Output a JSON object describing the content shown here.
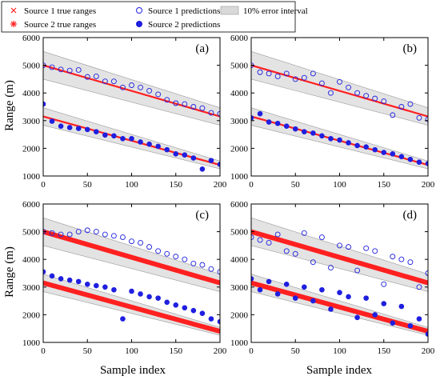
{
  "legend": {
    "s1_true": "Source 1 true ranges",
    "s1_pred": "Source 1 predictions",
    "err": "10% error interval",
    "s2_true": "Source 2 true ranges",
    "s2_pred": "Source 2 predictions"
  },
  "axes": {
    "xlabel": "Sample index",
    "ylabel": "Range (m)"
  },
  "colors": {
    "true_line": "#ff2020",
    "pred": "#1f1fe0",
    "band": "#d9d9d9",
    "band_edge": "#9a9a9a"
  },
  "chart_data": [
    {
      "type": "scatter",
      "panel_label": "(a)",
      "xlim": [
        0,
        200
      ],
      "ylim": [
        1000,
        6000
      ],
      "xticks": [
        0,
        50,
        100,
        150,
        200
      ],
      "yticks": [
        1000,
        2000,
        3000,
        4000,
        5000,
        6000
      ],
      "series": [
        {
          "name": "Source 1 true ranges",
          "line": [
            [
              0,
              5000
            ],
            [
              200,
              3150
            ]
          ]
        },
        {
          "name": "Source 2 true ranges",
          "line": [
            [
              0,
              3150
            ],
            [
              200,
              1400
            ]
          ]
        },
        {
          "name": "10% error interval"
        },
        {
          "name": "Source 1 predictions",
          "x": [
            0,
            10,
            20,
            30,
            40,
            50,
            60,
            70,
            80,
            90,
            100,
            110,
            120,
            130,
            140,
            150,
            160,
            170,
            180,
            190,
            200
          ],
          "y": [
            5000,
            4930,
            4850,
            4810,
            4830,
            4580,
            4600,
            4420,
            4420,
            4200,
            4280,
            4200,
            4080,
            3950,
            3750,
            3630,
            3600,
            3500,
            3450,
            3280,
            3250
          ]
        },
        {
          "name": "Source 2 predictions",
          "x": [
            0,
            10,
            20,
            30,
            40,
            50,
            60,
            70,
            80,
            90,
            100,
            110,
            120,
            130,
            140,
            150,
            160,
            170,
            180,
            190,
            200
          ],
          "y": [
            3600,
            2980,
            2800,
            2750,
            2720,
            2680,
            2600,
            2480,
            2450,
            2350,
            2350,
            2230,
            2150,
            2070,
            1950,
            1800,
            1760,
            1650,
            1250,
            1560,
            1420
          ]
        }
      ]
    },
    {
      "type": "scatter",
      "panel_label": "(b)",
      "xlim": [
        0,
        200
      ],
      "ylim": [
        1000,
        6000
      ],
      "xticks": [
        0,
        50,
        100,
        150,
        200
      ],
      "yticks": [
        1000,
        2000,
        3000,
        4000,
        5000,
        6000
      ],
      "series": [
        {
          "name": "Source 1 true ranges",
          "line": [
            [
              0,
              5000
            ],
            [
              200,
              3150
            ]
          ]
        },
        {
          "name": "Source 2 true ranges",
          "line": [
            [
              0,
              3150
            ],
            [
              200,
              1400
            ]
          ]
        },
        {
          "name": "10% error interval"
        },
        {
          "name": "Source 1 predictions",
          "x": [
            0,
            10,
            20,
            30,
            40,
            50,
            60,
            70,
            80,
            90,
            100,
            110,
            120,
            130,
            140,
            150,
            160,
            170,
            180,
            190,
            200
          ],
          "y": [
            5000,
            4750,
            4700,
            4600,
            4700,
            4500,
            4550,
            4700,
            4350,
            4000,
            4400,
            4200,
            4000,
            3900,
            3800,
            3700,
            3200,
            3500,
            3600,
            3100,
            3050
          ]
        },
        {
          "name": "Source 2 predictions",
          "x": [
            0,
            10,
            20,
            30,
            40,
            50,
            60,
            70,
            80,
            90,
            100,
            110,
            120,
            130,
            140,
            150,
            160,
            170,
            180,
            190,
            200
          ],
          "y": [
            3100,
            3250,
            2950,
            2900,
            2800,
            2700,
            2600,
            2550,
            2450,
            2350,
            2300,
            2200,
            2100,
            2050,
            1950,
            1850,
            1800,
            1700,
            1600,
            1500,
            1450
          ]
        }
      ]
    },
    {
      "type": "scatter",
      "panel_label": "(c)",
      "xlim": [
        0,
        200
      ],
      "ylim": [
        1000,
        6000
      ],
      "xticks": [
        0,
        50,
        100,
        150,
        200
      ],
      "yticks": [
        1000,
        2000,
        3000,
        4000,
        5000,
        6000
      ],
      "series": [
        {
          "name": "Source 1 true ranges",
          "line": [
            [
              0,
              5000
            ],
            [
              200,
              3150
            ]
          ]
        },
        {
          "name": "Source 2 true ranges",
          "line": [
            [
              0,
              3150
            ],
            [
              200,
              1400
            ]
          ]
        },
        {
          "name": "10% error interval"
        },
        {
          "name": "Source 1 predictions",
          "x": [
            0,
            10,
            20,
            30,
            40,
            50,
            60,
            70,
            80,
            90,
            100,
            110,
            120,
            130,
            140,
            150,
            160,
            170,
            180,
            190,
            200
          ],
          "y": [
            5000,
            4950,
            4900,
            4900,
            5000,
            5050,
            5000,
            4900,
            4850,
            4800,
            4650,
            4600,
            4450,
            4300,
            4200,
            4100,
            4000,
            3850,
            3800,
            3650,
            3550
          ]
        },
        {
          "name": "Source 2 predictions",
          "x": [
            0,
            10,
            20,
            30,
            40,
            50,
            60,
            70,
            80,
            90,
            100,
            110,
            120,
            130,
            140,
            150,
            160,
            170,
            180,
            190,
            200
          ],
          "y": [
            3550,
            3400,
            3300,
            3250,
            3200,
            3100,
            3050,
            3000,
            2900,
            1850,
            2850,
            2750,
            2650,
            2600,
            2450,
            2350,
            2250,
            2150,
            2050,
            1850,
            1750
          ]
        }
      ]
    },
    {
      "type": "scatter",
      "panel_label": "(d)",
      "xlim": [
        0,
        200
      ],
      "ylim": [
        1000,
        6000
      ],
      "xticks": [
        0,
        50,
        100,
        150,
        200
      ],
      "yticks": [
        1000,
        2000,
        3000,
        4000,
        5000,
        6000
      ],
      "series": [
        {
          "name": "Source 1 true ranges",
          "line": [
            [
              0,
              5000
            ],
            [
              200,
              3150
            ]
          ]
        },
        {
          "name": "Source 2 true ranges",
          "line": [
            [
              0,
              3150
            ],
            [
              200,
              1400
            ]
          ]
        },
        {
          "name": "10% error interval"
        },
        {
          "name": "Source 1 predictions",
          "x": [
            0,
            10,
            20,
            30,
            40,
            50,
            60,
            70,
            80,
            90,
            100,
            110,
            120,
            130,
            140,
            150,
            160,
            170,
            180,
            190,
            200
          ],
          "y": [
            4800,
            4700,
            4600,
            4900,
            4300,
            4200,
            4950,
            3900,
            4800,
            3700,
            4500,
            4450,
            3600,
            4400,
            4300,
            3100,
            4100,
            4000,
            3900,
            3000,
            3500
          ]
        },
        {
          "name": "Source 2 predictions",
          "x": [
            0,
            10,
            20,
            30,
            40,
            50,
            60,
            70,
            80,
            90,
            100,
            110,
            120,
            130,
            140,
            150,
            160,
            170,
            180,
            190,
            200
          ],
          "y": [
            3300,
            2900,
            3200,
            2750,
            3100,
            2600,
            3000,
            2500,
            2900,
            2200,
            2800,
            2650,
            1900,
            2600,
            2000,
            2400,
            1700,
            2300,
            1600,
            1850,
            1300
          ]
        }
      ]
    }
  ]
}
